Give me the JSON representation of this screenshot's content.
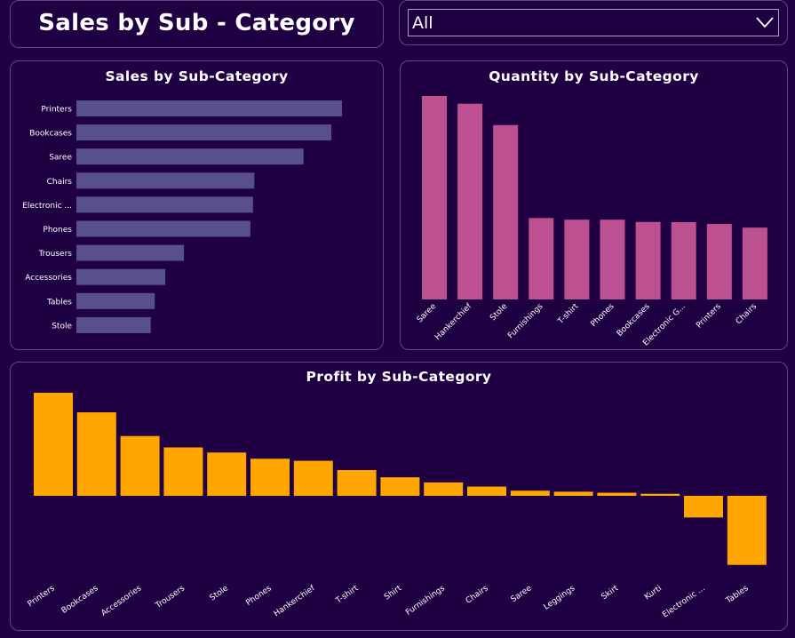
{
  "header": {
    "title": "Sales by Sub - Category"
  },
  "filter": {
    "selected": "All"
  },
  "colors": {
    "background": "#1e0043",
    "sales_bar": "#58508d",
    "quantity_bar": "#bc5090",
    "profit_bar": "#ffa600",
    "border": "#5e4a86"
  },
  "chart_data": [
    {
      "type": "bar",
      "orientation": "horizontal",
      "title": "Sales by Sub-Category",
      "categories": [
        "Printers",
        "Bookcases",
        "Saree",
        "Chairs",
        "Electronic ...",
        "Phones",
        "Trousers",
        "Accessories",
        "Tables",
        "Stole"
      ],
      "values": [
        1000,
        960,
        855,
        670,
        665,
        655,
        405,
        335,
        295,
        280
      ],
      "xlim": [
        0,
        1000
      ]
    },
    {
      "type": "bar",
      "title": "Quantity by Sub-Category",
      "categories": [
        "Saree",
        "Hankerchief",
        "Stole",
        "Furnishings",
        "T-shirt",
        "Phones",
        "Bookcases",
        "Electronic G...",
        "Printers",
        "Chairs"
      ],
      "values": [
        1000,
        962,
        857,
        400,
        392,
        392,
        381,
        380,
        371,
        353
      ],
      "ylim": [
        0,
        1000
      ]
    },
    {
      "type": "bar",
      "title": "Profit by Sub-Category",
      "categories": [
        "Printers",
        "Bookcases",
        "Accessories",
        "Trousers",
        "Stole",
        "Phones",
        "Hankerchief",
        "T-shirt",
        "Shirt",
        "Furnishings",
        "Chairs",
        "Saree",
        "Leggings",
        "Skirt",
        "Kurti",
        "Electronic ...",
        "Tables"
      ],
      "values": [
        100,
        81,
        58,
        47,
        42,
        36,
        34,
        25,
        18,
        13,
        9,
        5,
        4,
        3,
        2,
        -21,
        -67
      ],
      "ylim": [
        -67,
        100
      ]
    }
  ]
}
